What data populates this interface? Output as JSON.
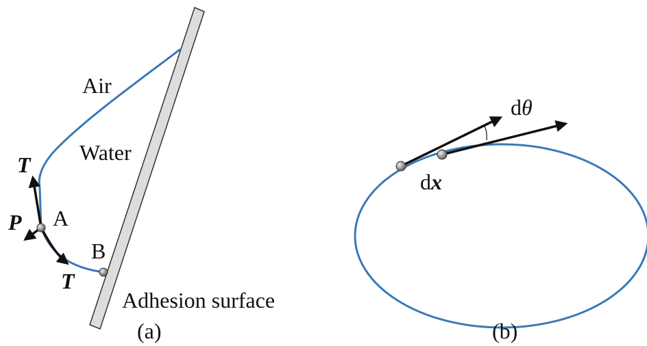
{
  "panel_a": {
    "air": "Air",
    "water": "Water",
    "tension_top": "T",
    "pressure": "P",
    "point_a": "A",
    "point_b": "B",
    "tension_bottom": "T",
    "surface": "Adhesion surface",
    "caption": "(a)"
  },
  "panel_b": {
    "angle_d": "d",
    "angle_symbol": "θ",
    "length_d": "d",
    "length_symbol": "x",
    "caption": "(b)"
  }
}
